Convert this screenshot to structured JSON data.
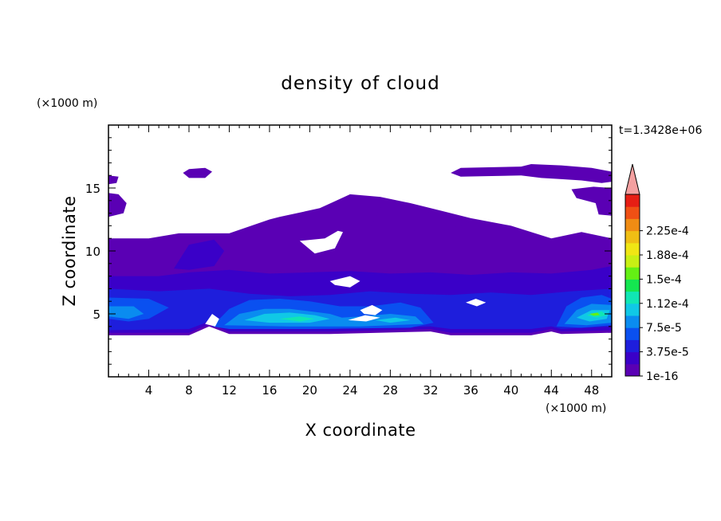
{
  "chart_data": {
    "type": "heatmap",
    "title": "density of cloud",
    "xlabel": "X coordinate",
    "ylabel": "Z coordinate",
    "x_unit": "(×1000 m)",
    "y_unit": "(×1000 m)",
    "time_label": "t=1.3428e+06",
    "xlim": [
      0,
      50
    ],
    "ylim": [
      0,
      20
    ],
    "x_ticks": [
      4,
      8,
      12,
      16,
      20,
      24,
      28,
      32,
      36,
      40,
      44,
      48
    ],
    "y_ticks": [
      5,
      10,
      15
    ],
    "colorbar": {
      "labels": [
        "1e-16",
        "3.75e-5",
        "7.5e-5",
        "1.12e-4",
        "1.5e-4",
        "1.88e-4",
        "2.25e-4"
      ],
      "colors": [
        "#5a00b4",
        "#3a00c8",
        "#1e1edc",
        "#0a50f0",
        "#0a8cf0",
        "#10c8e6",
        "#10e6b4",
        "#14e650",
        "#64f014",
        "#c8f014",
        "#f0e614",
        "#f0be14",
        "#f08c14",
        "#f05014",
        "#e61e14"
      ],
      "extend_color": "#f4a0a0"
    },
    "regions": [
      {
        "level": 0,
        "poly": [
          [
            0,
            11
          ],
          [
            4,
            11
          ],
          [
            7,
            11.4
          ],
          [
            12,
            11.4
          ],
          [
            16,
            12.5
          ],
          [
            17,
            12.7
          ],
          [
            21,
            13.4
          ],
          [
            24,
            14.5
          ],
          [
            27,
            14.3
          ],
          [
            30,
            13.8
          ],
          [
            33,
            13.2
          ],
          [
            36,
            12.6
          ],
          [
            40,
            12
          ],
          [
            44,
            11
          ],
          [
            47,
            11.5
          ],
          [
            50,
            11
          ],
          [
            50,
            3.5
          ],
          [
            45,
            3.4
          ],
          [
            44,
            3.6
          ],
          [
            42,
            3.3
          ],
          [
            34,
            3.3
          ],
          [
            32,
            3.6
          ],
          [
            22,
            3.4
          ],
          [
            12,
            3.4
          ],
          [
            10,
            4
          ],
          [
            8,
            3.3
          ],
          [
            0,
            3.3
          ]
        ]
      },
      {
        "level": 0,
        "poly": [
          [
            26,
            11.8
          ],
          [
            33,
            11.5
          ],
          [
            34,
            11.8
          ],
          [
            36,
            12.3
          ],
          [
            30,
            13.4
          ],
          [
            27,
            13.5
          ]
        ]
      },
      {
        "level": 0,
        "poly": [
          [
            0,
            15.3
          ],
          [
            0.8,
            15.4
          ],
          [
            1,
            15.9
          ],
          [
            0,
            16
          ]
        ]
      },
      {
        "level": 0,
        "poly": [
          [
            0,
            12.7
          ],
          [
            1.5,
            13
          ],
          [
            1.8,
            13.8
          ],
          [
            1,
            14.5
          ],
          [
            0,
            14.6
          ]
        ]
      },
      {
        "level": 0,
        "poly": [
          [
            7.4,
            16.2
          ],
          [
            8,
            16.5
          ],
          [
            9.6,
            16.6
          ],
          [
            10.3,
            16.3
          ],
          [
            9.6,
            15.8
          ],
          [
            8,
            15.8
          ]
        ]
      },
      {
        "level": 0,
        "poly": [
          [
            34,
            16.2
          ],
          [
            35,
            16.6
          ],
          [
            41,
            16.7
          ],
          [
            42,
            16.9
          ],
          [
            45,
            16.8
          ],
          [
            48,
            16.6
          ],
          [
            50,
            16.3
          ],
          [
            50,
            15.5
          ],
          [
            49,
            15.4
          ],
          [
            47,
            15.6
          ],
          [
            45,
            15.7
          ],
          [
            43,
            15.8
          ],
          [
            41,
            16
          ],
          [
            35,
            15.9
          ]
        ]
      },
      {
        "level": 0,
        "poly": [
          [
            46,
            14.9
          ],
          [
            48.2,
            15.1
          ],
          [
            50,
            15
          ],
          [
            50,
            12.8
          ],
          [
            48.7,
            12.9
          ],
          [
            48.4,
            13.8
          ],
          [
            46.5,
            14.2
          ]
        ]
      },
      {
        "level": 1,
        "poly": [
          [
            0,
            8
          ],
          [
            5,
            8
          ],
          [
            8,
            8.3
          ],
          [
            12,
            8.5
          ],
          [
            16,
            8.2
          ],
          [
            20,
            8.3
          ],
          [
            24,
            8.4
          ],
          [
            28,
            8.2
          ],
          [
            32,
            8.3
          ],
          [
            36,
            8.1
          ],
          [
            40,
            8.3
          ],
          [
            44,
            8.2
          ],
          [
            48,
            8.5
          ],
          [
            50,
            8.8
          ],
          [
            50,
            3.7
          ],
          [
            45,
            3.6
          ],
          [
            44,
            3.8
          ],
          [
            42,
            3.5
          ],
          [
            34,
            3.5
          ],
          [
            32,
            3.8
          ],
          [
            22,
            3.6
          ],
          [
            12,
            3.6
          ],
          [
            10,
            4.2
          ],
          [
            8,
            3.5
          ],
          [
            0,
            3.5
          ]
        ]
      },
      {
        "level": 1,
        "poly": [
          [
            6.5,
            8.6
          ],
          [
            8,
            10.5
          ],
          [
            10.5,
            10.9
          ],
          [
            11.5,
            10
          ],
          [
            10.5,
            8.8
          ],
          [
            8,
            8.5
          ]
        ]
      },
      {
        "level": 2,
        "poly": [
          [
            0,
            7
          ],
          [
            5,
            6.8
          ],
          [
            10,
            7
          ],
          [
            14,
            6.6
          ],
          [
            18,
            6.4
          ],
          [
            22,
            6.5
          ],
          [
            26,
            6.8
          ],
          [
            30,
            6.6
          ],
          [
            34,
            6.5
          ],
          [
            38,
            6.7
          ],
          [
            42,
            6.5
          ],
          [
            46,
            6.8
          ],
          [
            50,
            7
          ],
          [
            50,
            4
          ],
          [
            45,
            3.8
          ],
          [
            44,
            4
          ],
          [
            42,
            3.8
          ],
          [
            34,
            3.8
          ],
          [
            32,
            4
          ],
          [
            22,
            3.8
          ],
          [
            12,
            3.9
          ],
          [
            10,
            4.4
          ],
          [
            8,
            3.8
          ],
          [
            0,
            3.7
          ]
        ]
      },
      {
        "level": 3,
        "poly": [
          [
            0,
            6.3
          ],
          [
            4,
            6.2
          ],
          [
            6,
            5.5
          ],
          [
            4,
            4.6
          ],
          [
            2,
            4.4
          ],
          [
            0,
            4.6
          ]
        ]
      },
      {
        "level": 3,
        "poly": [
          [
            10.3,
            4
          ],
          [
            12,
            5.4
          ],
          [
            14,
            6.1
          ],
          [
            17,
            6.2
          ],
          [
            20,
            6
          ],
          [
            23,
            5.6
          ],
          [
            26,
            5.6
          ],
          [
            29,
            5.9
          ],
          [
            31,
            5.5
          ],
          [
            32.3,
            4.3
          ],
          [
            30,
            3.9
          ],
          [
            20,
            3.8
          ],
          [
            12,
            3.8
          ]
        ]
      },
      {
        "level": 3,
        "poly": [
          [
            44.5,
            4
          ],
          [
            45.5,
            5.6
          ],
          [
            47,
            6.3
          ],
          [
            49,
            6.5
          ],
          [
            50,
            6.2
          ],
          [
            50,
            4.1
          ],
          [
            47,
            3.9
          ]
        ]
      },
      {
        "level": 4,
        "poly": [
          [
            11.5,
            4.1
          ],
          [
            13,
            5
          ],
          [
            15.5,
            5.4
          ],
          [
            18,
            5.4
          ],
          [
            20,
            5.2
          ],
          [
            22,
            5
          ],
          [
            23.2,
            4.7
          ],
          [
            25,
            4.8
          ],
          [
            28,
            5
          ],
          [
            30.5,
            4.8
          ],
          [
            31.3,
            4.2
          ],
          [
            25,
            4
          ],
          [
            18,
            4
          ]
        ]
      },
      {
        "level": 4,
        "poly": [
          [
            45.3,
            4.2
          ],
          [
            46.5,
            5.3
          ],
          [
            48,
            5.8
          ],
          [
            50,
            5.7
          ],
          [
            50,
            4.3
          ],
          [
            47.5,
            4.1
          ]
        ]
      },
      {
        "level": 4,
        "poly": [
          [
            0,
            5.6
          ],
          [
            2.5,
            5.6
          ],
          [
            3.5,
            5
          ],
          [
            2,
            4.6
          ],
          [
            0,
            4.8
          ]
        ]
      },
      {
        "level": 5,
        "poly": [
          [
            13.5,
            4.5
          ],
          [
            15.5,
            5
          ],
          [
            18,
            5.1
          ],
          [
            20.5,
            4.9
          ],
          [
            22,
            4.6
          ],
          [
            20,
            4.3
          ],
          [
            16,
            4.3
          ]
        ]
      },
      {
        "level": 5,
        "poly": [
          [
            26.5,
            4.5
          ],
          [
            28.5,
            4.7
          ],
          [
            30,
            4.5
          ],
          [
            28,
            4.3
          ]
        ]
      },
      {
        "level": 5,
        "poly": [
          [
            46.5,
            4.7
          ],
          [
            48,
            5.3
          ],
          [
            49.8,
            5.3
          ],
          [
            49.5,
            4.6
          ],
          [
            47.8,
            4.4
          ]
        ]
      },
      {
        "level": 6,
        "poly": [
          [
            17,
            4.6
          ],
          [
            19,
            4.8
          ],
          [
            20.5,
            4.6
          ],
          [
            19,
            4.4
          ]
        ]
      },
      {
        "level": 6,
        "poly": [
          [
            47.5,
            4.9
          ],
          [
            49,
            5.2
          ],
          [
            49.5,
            4.9
          ],
          [
            48.5,
            4.7
          ]
        ]
      },
      {
        "level": 8,
        "poly": [
          [
            47.8,
            5
          ],
          [
            48.6,
            5.1
          ],
          [
            48.8,
            4.9
          ],
          [
            48.2,
            4.85
          ]
        ]
      }
    ],
    "clear_gaps": [
      {
        "poly": [
          [
            19,
            10.8
          ],
          [
            21.5,
            11
          ],
          [
            22.8,
            11.6
          ],
          [
            23.3,
            11.5
          ],
          [
            22.5,
            10.2
          ],
          [
            20.5,
            9.8
          ]
        ]
      },
      {
        "poly": [
          [
            22,
            7.6
          ],
          [
            24,
            8
          ],
          [
            25,
            7.6
          ],
          [
            24,
            7.1
          ],
          [
            22.5,
            7.3
          ]
        ]
      },
      {
        "poly": [
          [
            25,
            5.3
          ],
          [
            26.2,
            5.7
          ],
          [
            27.2,
            5.3
          ],
          [
            26.5,
            4.9
          ],
          [
            25.4,
            5
          ]
        ]
      },
      {
        "poly": [
          [
            23.8,
            4.5
          ],
          [
            25.5,
            4.9
          ],
          [
            27,
            4.7
          ],
          [
            25.6,
            4.4
          ]
        ]
      },
      {
        "poly": [
          [
            9.6,
            4.2
          ],
          [
            10.3,
            5
          ],
          [
            11,
            4.6
          ],
          [
            10.6,
            4
          ]
        ]
      },
      {
        "poly": [
          [
            35.5,
            5.9
          ],
          [
            36.5,
            6.2
          ],
          [
            37.5,
            5.9
          ],
          [
            36.6,
            5.6
          ]
        ]
      }
    ]
  }
}
